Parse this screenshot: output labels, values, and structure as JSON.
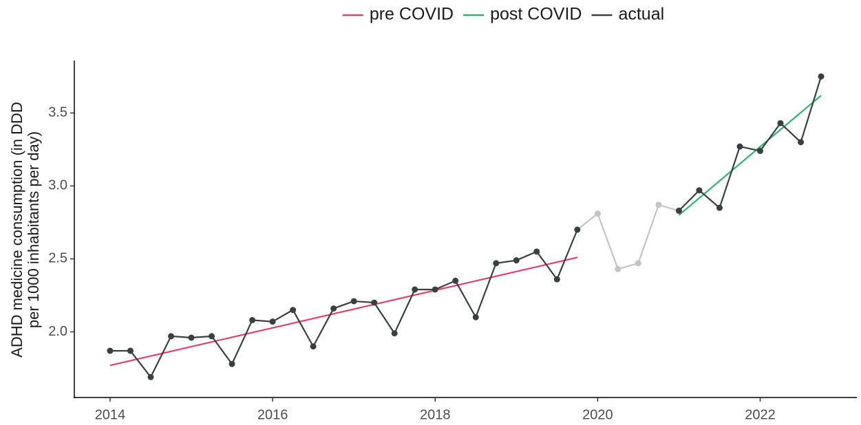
{
  "chart_data": {
    "type": "line",
    "y_label": [
      "ADHD medicine consumption (in DDD",
      "per 1000 inhabitants per day)"
    ],
    "xlim": [
      2013.56,
      2023.19
    ],
    "ylim": [
      1.55,
      3.85
    ],
    "xticks": [
      2014,
      2016,
      2018,
      2020,
      2022
    ],
    "yticks": [
      {
        "value": 2.0,
        "label": "2.0"
      },
      2.5,
      {
        "value": 3.0,
        "label": "3.0"
      },
      3.5
    ],
    "grid": false,
    "legend": "top",
    "series": [
      {
        "color": "#c4c4c4",
        "markers": true,
        "x": [
          2019.75,
          2020.0,
          2020.25,
          2020.5,
          2020.75,
          2021.0
        ],
        "values": [
          2.7,
          2.81,
          2.43,
          2.47,
          2.87,
          2.83
        ]
      },
      {
        "name": "pre COVID",
        "color": "#e5406c",
        "markers": false,
        "x": [
          2014.0,
          2019.75
        ],
        "values": [
          1.77,
          2.51
        ]
      },
      {
        "name": "post COVID",
        "color": "#2fb36c",
        "markers": false,
        "x": [
          2021.0,
          2022.75
        ],
        "values": [
          2.8,
          3.62
        ]
      },
      {
        "name": "actual",
        "color": "#3a3f40",
        "markers": true,
        "x": [
          2014.0,
          2014.25,
          2014.5,
          2014.75,
          2015.0,
          2015.25,
          2015.5,
          2015.75,
          2016.0,
          2016.25,
          2016.5,
          2016.75,
          2017.0,
          2017.25,
          2017.5,
          2017.75,
          2018.0,
          2018.25,
          2018.5,
          2018.75,
          2019.0,
          2019.25,
          2019.5,
          2019.75,
          2020.0,
          2020.25,
          2020.5,
          2020.75,
          2021.0,
          2021.25,
          2021.5,
          2021.75,
          2022.0,
          2022.25,
          2022.5,
          2022.75
        ],
        "values": [
          1.87,
          1.87,
          1.69,
          1.97,
          1.96,
          1.97,
          1.78,
          2.08,
          2.07,
          2.15,
          1.9,
          2.16,
          2.21,
          2.2,
          1.99,
          2.29,
          2.29,
          2.35,
          2.1,
          2.47,
          2.49,
          2.55,
          2.36,
          2.7,
          null,
          null,
          null,
          null,
          2.83,
          2.97,
          2.85,
          3.27,
          3.24,
          3.43,
          3.3,
          3.75
        ]
      }
    ]
  }
}
